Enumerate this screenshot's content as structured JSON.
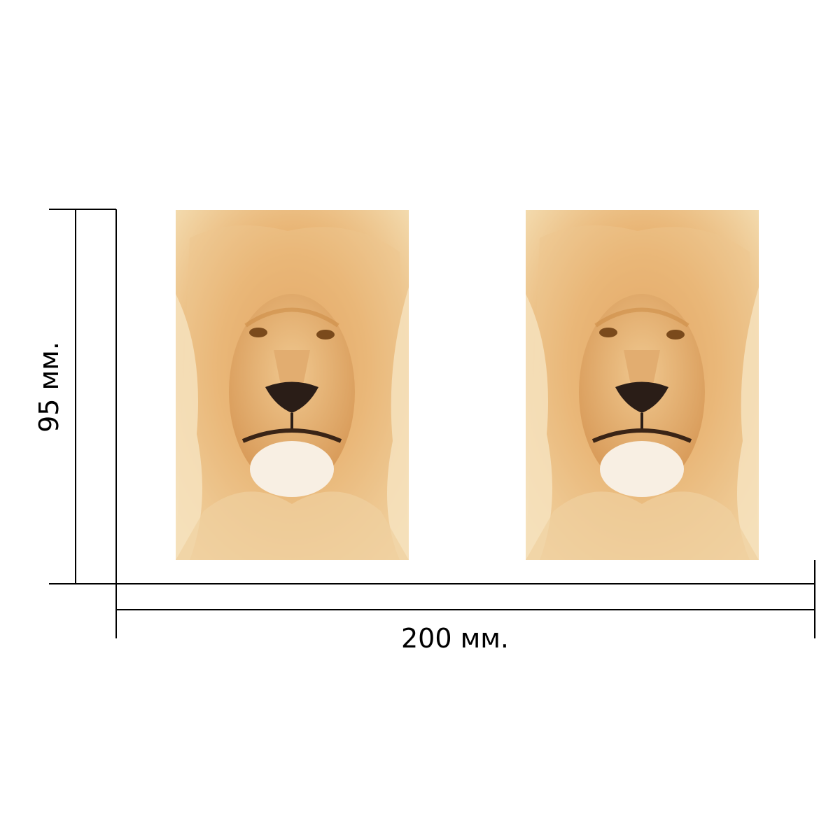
{
  "dimensions": {
    "width_label": "200 мм.",
    "height_label": "95 мм."
  },
  "photos": [
    {
      "subject": "lion-portrait"
    },
    {
      "subject": "lion-portrait"
    }
  ],
  "colors": {
    "line": "#000000",
    "mane_light": "#f3dcae",
    "mane_mid": "#e0a45c",
    "mane_dark": "#c97a32",
    "face": "#e6b57a",
    "nose": "#2a1d17"
  }
}
